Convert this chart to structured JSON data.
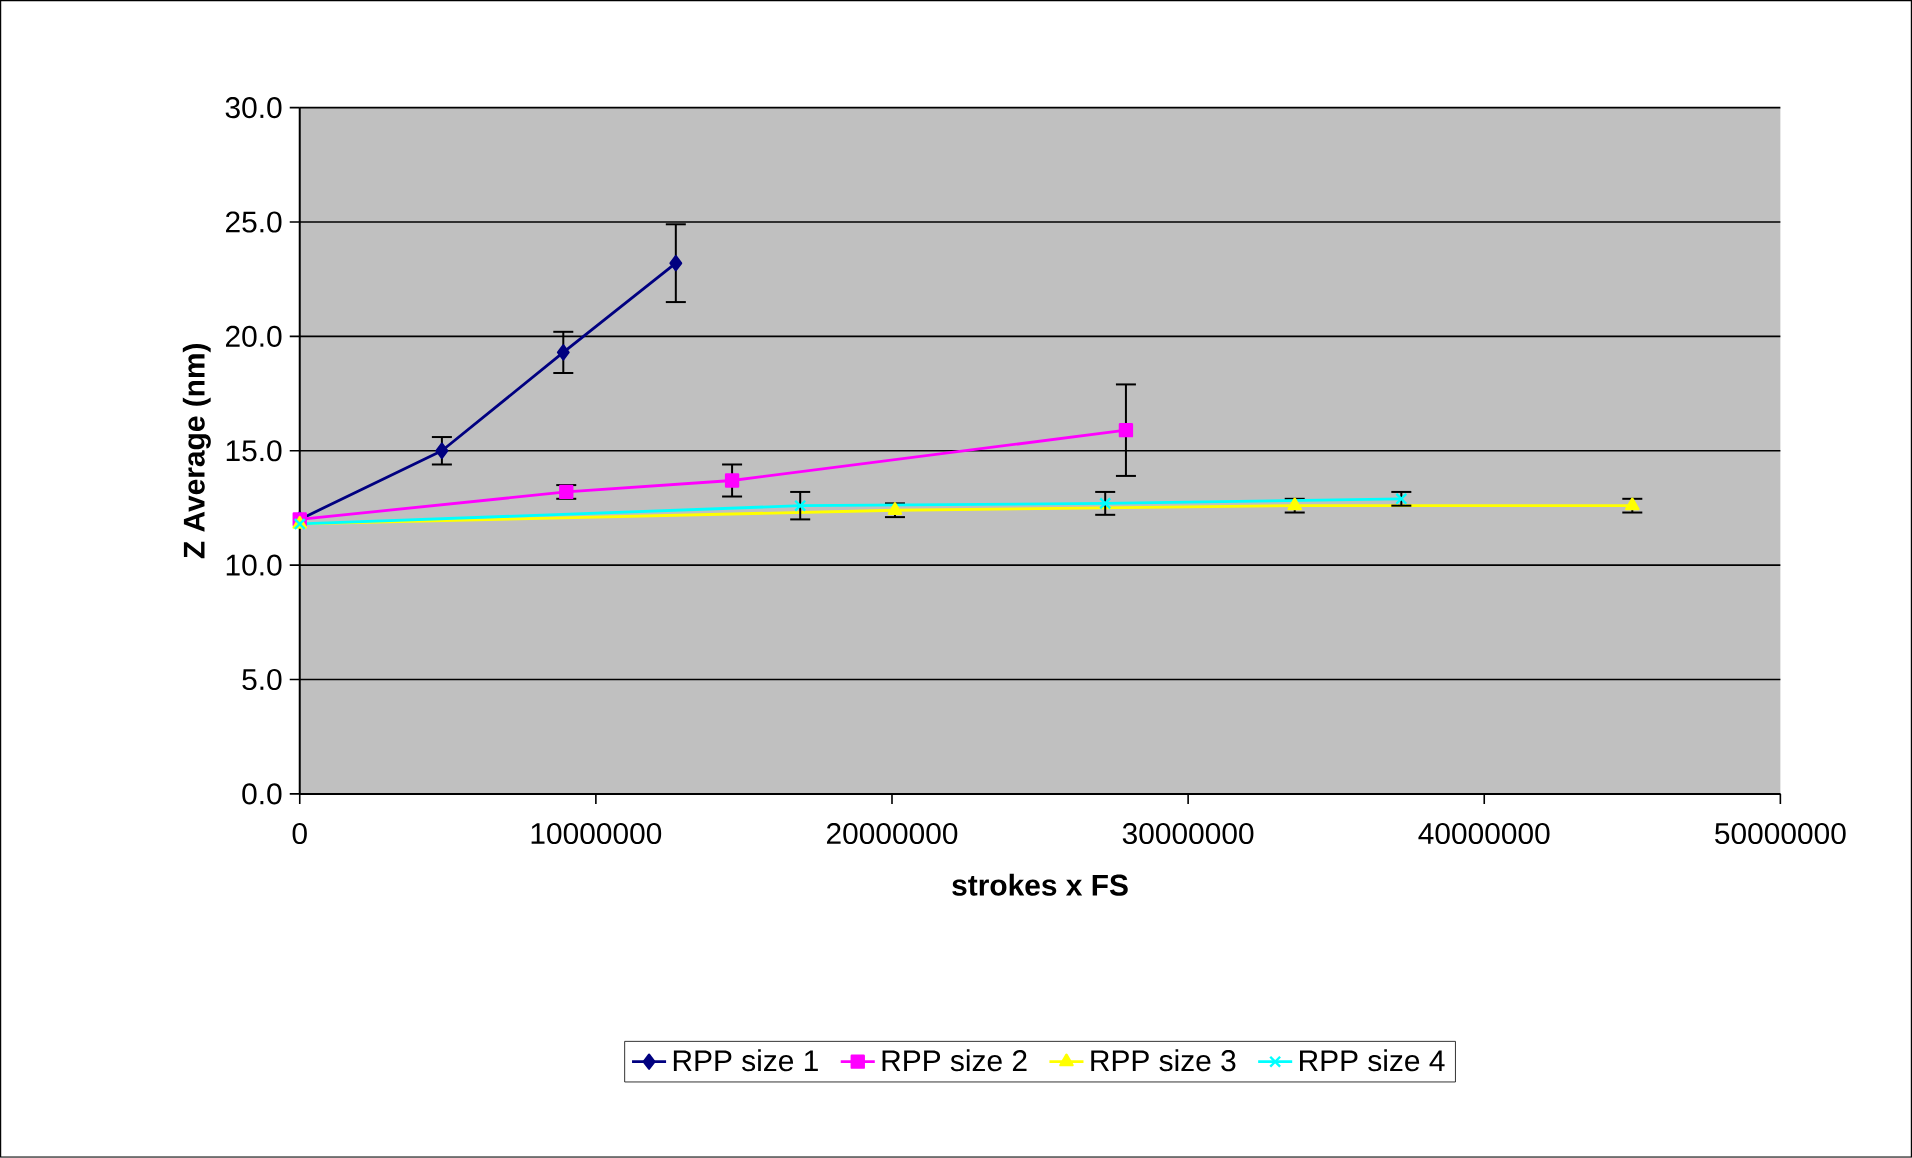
{
  "chart_data": {
    "type": "line",
    "xlabel": "strokes x FS",
    "ylabel": "Z Average (nm)",
    "xlim": [
      0,
      50000000
    ],
    "xticks": [
      0,
      10000000,
      20000000,
      30000000,
      40000000,
      50000000
    ],
    "ylim": [
      0,
      30
    ],
    "yticks": [
      {
        "value": 0,
        "label": "0.0"
      },
      {
        "value": 5,
        "label": "5.0"
      },
      {
        "value": 10,
        "label": "10.0"
      },
      {
        "value": 15,
        "label": "15.0"
      },
      {
        "value": 20,
        "label": "20.0"
      },
      {
        "value": 25,
        "label": "25.0"
      },
      {
        "value": 30,
        "label": "30.0"
      }
    ],
    "grid": "y",
    "legend": "bottom",
    "series": [
      {
        "name": "RPP size 1",
        "color": "#000080",
        "marker": "diamond",
        "x": [
          0,
          4800000,
          8900000,
          12700000
        ],
        "values": [
          12.0,
          15.0,
          19.3,
          23.2
        ],
        "errors": [
          null,
          0.6,
          0.9,
          1.7
        ]
      },
      {
        "name": "RPP size 2",
        "color": "#ff00ff",
        "marker": "square",
        "x": [
          0,
          9000000,
          14600000,
          27900000
        ],
        "values": [
          12.0,
          13.2,
          13.7,
          15.9
        ],
        "errors": [
          null,
          0.3,
          0.7,
          2.0
        ]
      },
      {
        "name": "RPP size 3",
        "color": "#ffff00",
        "marker": "triangle",
        "x": [
          0,
          20100000,
          33600000,
          45000000
        ],
        "values": [
          11.8,
          12.4,
          12.6,
          12.6
        ],
        "errors": [
          null,
          0.3,
          0.3,
          0.3
        ]
      },
      {
        "name": "RPP size 4",
        "color": "#00ffff",
        "marker": "cross",
        "x": [
          0,
          16900000,
          27200000,
          37200000
        ],
        "values": [
          11.8,
          12.6,
          12.7,
          12.9
        ],
        "errors": [
          null,
          0.6,
          0.5,
          0.3
        ]
      }
    ]
  }
}
